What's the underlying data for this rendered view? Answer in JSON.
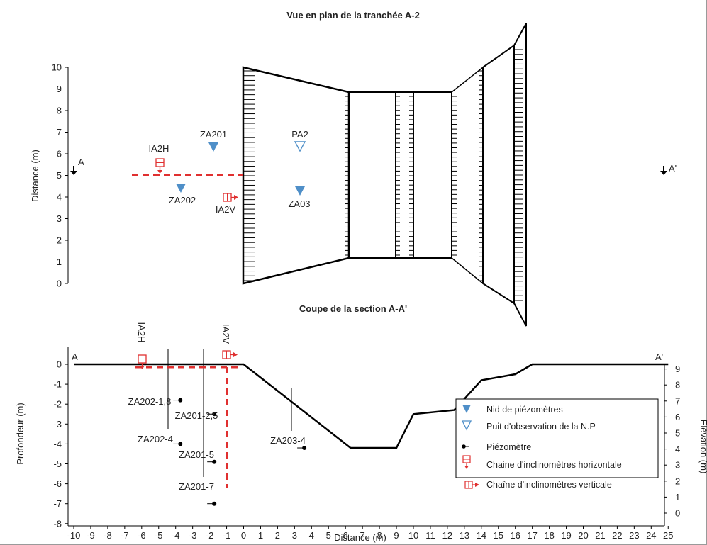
{
  "plan": {
    "title": "Vue en plan de la tranchée A-2",
    "ylabel": "Distance (m)",
    "yticks": [
      "10",
      "9",
      "8",
      "7",
      "6",
      "5",
      "4",
      "3",
      "2",
      "1",
      "0"
    ],
    "labels": {
      "a": "A",
      "a_prime": "A'",
      "za201": "ZA201",
      "za202": "ZA202",
      "za03": "ZA03",
      "pa2": "PA2",
      "ia2h": "IA2H",
      "ia2v": "IA2V"
    }
  },
  "section": {
    "title": "Coupe de la section A-A'",
    "ylabel_left": "Profondeur (m)",
    "ylabel_right": "Élévation (m)",
    "xlabel": "Distance (m)",
    "yticks_left": [
      "0",
      "-1",
      "-2",
      "-3",
      "-4",
      "-5",
      "-6",
      "-7",
      "-8"
    ],
    "yticks_right": [
      "9",
      "8",
      "7",
      "6",
      "5",
      "4",
      "3",
      "2",
      "1",
      "0"
    ],
    "xticks": [
      "-10",
      "-9",
      "-8",
      "-7",
      "-6",
      "-5",
      "-4",
      "-3",
      "-2",
      "-1",
      "0",
      "1",
      "2",
      "3",
      "4",
      "5",
      "6",
      "7",
      "8",
      "9",
      "10",
      "11",
      "12",
      "13",
      "14",
      "15",
      "16",
      "17",
      "18",
      "19",
      "20",
      "21",
      "22",
      "23",
      "24",
      "25"
    ],
    "labels": {
      "a": "A",
      "a_prime": "A'",
      "ia2h": "IA2H",
      "ia2v": "IA2V",
      "za202_18": "ZA202-1,8",
      "za202_4": "ZA202-4",
      "za201_25": "ZA201-2,5",
      "za201_5": "ZA201-5",
      "za201_7": "ZA201-7",
      "za203_4": "ZA203-4"
    }
  },
  "legend": {
    "items": [
      {
        "label": "Nid de piézomètres",
        "icon": "filled-triangle-icon"
      },
      {
        "label": "Puit d'observation de la N.P",
        "icon": "hollow-triangle-icon"
      },
      {
        "label": "Piézomètre",
        "icon": "piezometer-icon"
      },
      {
        "label": "Chaine d'inclinomètres horizontale",
        "icon": "horizontal-chain-icon"
      },
      {
        "label": "Chaîne d'inclinomètres verticale",
        "icon": "vertical-chain-icon"
      }
    ]
  },
  "colors": {
    "piezometer_nest": "#4f8fc8",
    "inclinometer": "#e03030",
    "outline": "#000000"
  },
  "chart_data": {
    "type": "diagram",
    "ground_profile": {
      "x": [
        -10,
        0,
        6.3,
        9,
        10,
        12.4,
        14,
        16,
        17,
        25
      ],
      "depth": [
        0,
        0,
        -4.2,
        -4.2,
        -2.5,
        -2.3,
        -0.8,
        -0.5,
        0,
        0
      ]
    },
    "piezometers_section": [
      {
        "name": "ZA202-1,8",
        "x": -4.1,
        "depth": -1.8
      },
      {
        "name": "ZA202-4",
        "x": -4.1,
        "depth": -4.0
      },
      {
        "name": "ZA201-2,5",
        "x": -2.1,
        "depth": -2.5
      },
      {
        "name": "ZA201-5",
        "x": -2.1,
        "depth": -4.9
      },
      {
        "name": "ZA201-7",
        "x": -2.1,
        "depth": -7.0
      },
      {
        "name": "ZA203-4",
        "x": 3.2,
        "depth": -4.2
      }
    ],
    "plan_markers": [
      {
        "name": "ZA201",
        "type": "piezometer-nest",
        "distance": 6.3
      },
      {
        "name": "ZA202",
        "type": "piezometer-nest",
        "distance": 4.5
      },
      {
        "name": "ZA03",
        "type": "piezometer-nest",
        "distance": 4.3
      },
      {
        "name": "PA2",
        "type": "observation-well",
        "distance": 6.3
      }
    ]
  }
}
